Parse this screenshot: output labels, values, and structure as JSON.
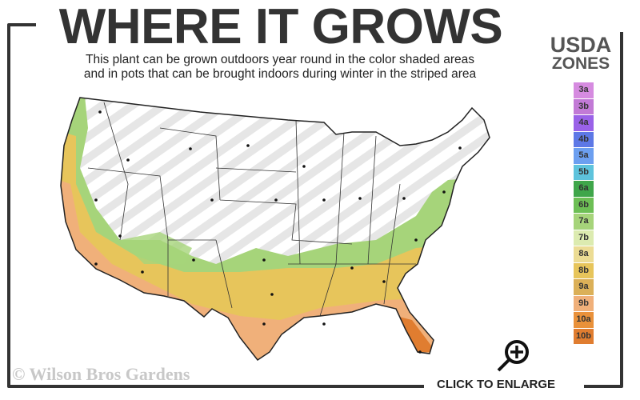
{
  "header": {
    "title": "WHERE IT GROWS",
    "subtitle_line1": "This plant can be grown outdoors year round in the color shaded areas",
    "subtitle_line2": "and in pots that can be brought indoors during winter in the striped area"
  },
  "legend": {
    "title_line1": "USDA",
    "title_line2": "ZONES",
    "zones": [
      {
        "label": "3a",
        "color": "#d68be0"
      },
      {
        "label": "3b",
        "color": "#c27ad6"
      },
      {
        "label": "4a",
        "color": "#9a62e8"
      },
      {
        "label": "4b",
        "color": "#5d78e6"
      },
      {
        "label": "5a",
        "color": "#6c9ff0"
      },
      {
        "label": "5b",
        "color": "#5ec3dc"
      },
      {
        "label": "6a",
        "color": "#3fa64a"
      },
      {
        "label": "6b",
        "color": "#6dbf55"
      },
      {
        "label": "7a",
        "color": "#a6d47a"
      },
      {
        "label": "7b",
        "color": "#dcebb0"
      },
      {
        "label": "8a",
        "color": "#ecdc94"
      },
      {
        "label": "8b",
        "color": "#e7c55b"
      },
      {
        "label": "9a",
        "color": "#dbb058"
      },
      {
        "label": "9b",
        "color": "#f0b07a"
      },
      {
        "label": "10a",
        "color": "#e9913a"
      },
      {
        "label": "10b",
        "color": "#e07d30"
      }
    ]
  },
  "footer": {
    "credit": "© Wilson Bros Gardens",
    "enlarge_label": "CLICK TO ENLARGE"
  }
}
